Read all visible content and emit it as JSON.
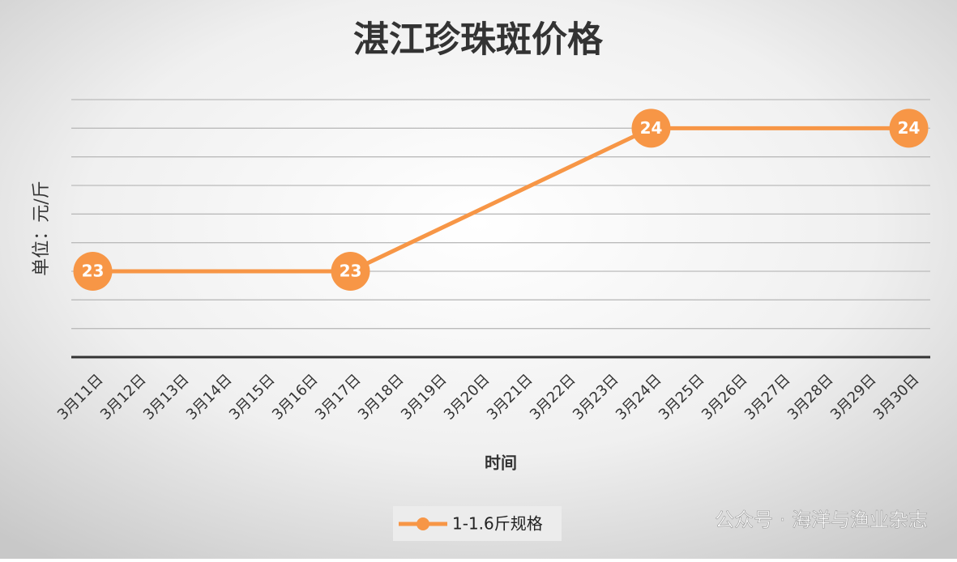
{
  "chart_data": {
    "type": "line",
    "title": "湛江珍珠斑价格",
    "y_label": "单位：元/斤",
    "x_label": "时间",
    "categories": [
      "3月11日",
      "3月12日",
      "3月13日",
      "3月14日",
      "3月15日",
      "3月16日",
      "3月17日",
      "3月18日",
      "3月19日",
      "3月20日",
      "3月21日",
      "3月22日",
      "3月23日",
      "3月24日",
      "3月25日",
      "3月26日",
      "3月27日",
      "3月28日",
      "3月29日",
      "3月30日"
    ],
    "x": [
      "3月11日",
      "3月17日",
      "3月24日",
      "3月30日"
    ],
    "series": [
      {
        "name": "1-1.6斤规格",
        "color": "#f79646",
        "values": [
          23,
          23,
          24,
          24
        ]
      }
    ],
    "ylim": [
      22.4,
      24.2
    ],
    "yticks": [
      22.4,
      22.6,
      22.8,
      23,
      23.2,
      23.4,
      23.6,
      23.8,
      24,
      24.2
    ],
    "grid": true,
    "legend": "bottom",
    "watermark": "公众号 · 海洋与渔业杂志"
  }
}
